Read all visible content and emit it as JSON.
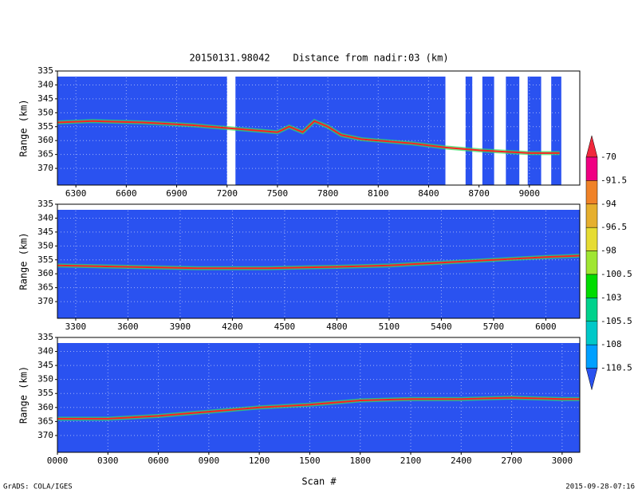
{
  "title": "20150131.98042    Distance from nadir:03 (km)",
  "xlabel": "Scan #",
  "footer_left": "GrADS: COLA/IGES",
  "footer_right": "2015-09-28-07:16",
  "colorbar": {
    "levels": [
      -70,
      -91.5,
      -94,
      -96.5,
      -98,
      -100.5,
      -103,
      -105.5,
      -108,
      -110.5
    ],
    "colors": [
      "#f0283c",
      "#f00082",
      "#f08228",
      "#e6af2d",
      "#e6dc32",
      "#a0e632",
      "#00dc00",
      "#00d28c",
      "#00c8c8",
      "#00a0ff",
      "#2a52f0"
    ]
  },
  "chart_data": [
    {
      "type": "line",
      "ylabel": "Range (km)",
      "field_color": "#2a52f0",
      "color": "#ff2020",
      "halo": "#30e060",
      "x": [
        6190,
        6400,
        6700,
        7000,
        7200,
        7400,
        7500,
        7570,
        7650,
        7720,
        7800,
        7880,
        8000,
        8200,
        8300,
        8500,
        8700,
        9000,
        9180
      ],
      "values": [
        353.5,
        353,
        353.5,
        354.5,
        355.5,
        356.5,
        357,
        355,
        357,
        353,
        355,
        358,
        359.5,
        360.5,
        361,
        362.5,
        363.5,
        364.5,
        364.5
      ],
      "missing": [
        [
          7200,
          7250
        ],
        [
          8500,
          8620
        ],
        [
          8660,
          8720
        ],
        [
          8790,
          8860
        ],
        [
          8940,
          8990
        ],
        [
          9070,
          9130
        ],
        [
          9190,
          9300
        ]
      ],
      "xlim": [
        6190,
        9300
      ],
      "ylim": [
        335,
        376
      ],
      "xticks": [
        6300,
        6600,
        6900,
        7200,
        7500,
        7800,
        8100,
        8400,
        8700,
        9000
      ],
      "yticks": [
        335,
        340,
        345,
        350,
        355,
        360,
        365,
        370
      ],
      "grid": true
    },
    {
      "type": "line",
      "ylabel": "Range (km)",
      "field_color": "#2a52f0",
      "color": "#ff2020",
      "halo": "#30e060",
      "x": [
        3195,
        3600,
        4000,
        4400,
        4800,
        5100,
        5400,
        5700,
        6000,
        6195
      ],
      "values": [
        357,
        357.5,
        358,
        358,
        357.5,
        357,
        356,
        355,
        354,
        353.5
      ],
      "xlim": [
        3195,
        6195
      ],
      "ylim": [
        335,
        376
      ],
      "xticks": [
        3300,
        3600,
        3900,
        4200,
        4500,
        4800,
        5100,
        5400,
        5700,
        6000
      ],
      "yticks": [
        335,
        340,
        345,
        350,
        355,
        360,
        365,
        370
      ],
      "grid": true
    },
    {
      "type": "line",
      "ylabel": "Range (km)",
      "field_color": "#2a52f0",
      "color": "#ff2020",
      "halo": "#30e060",
      "x": [
        0,
        300,
        600,
        900,
        1200,
        1500,
        1800,
        2100,
        2400,
        2700,
        3000,
        3105
      ],
      "values": [
        364,
        364,
        363,
        361.5,
        360,
        359,
        357.5,
        357,
        357,
        356.5,
        357,
        357
      ],
      "xlim": [
        0,
        3105
      ],
      "ylim": [
        335,
        376
      ],
      "xticks": [
        {
          "value": 0,
          "label": "0000"
        },
        {
          "value": 300,
          "label": "0300"
        },
        {
          "value": 600,
          "label": "0600"
        },
        {
          "value": 900,
          "label": "0900"
        },
        1200,
        1500,
        1800,
        2100,
        2400,
        2700,
        3000
      ],
      "yticks": [
        335,
        340,
        345,
        350,
        355,
        360,
        365,
        370
      ],
      "grid": true
    }
  ]
}
